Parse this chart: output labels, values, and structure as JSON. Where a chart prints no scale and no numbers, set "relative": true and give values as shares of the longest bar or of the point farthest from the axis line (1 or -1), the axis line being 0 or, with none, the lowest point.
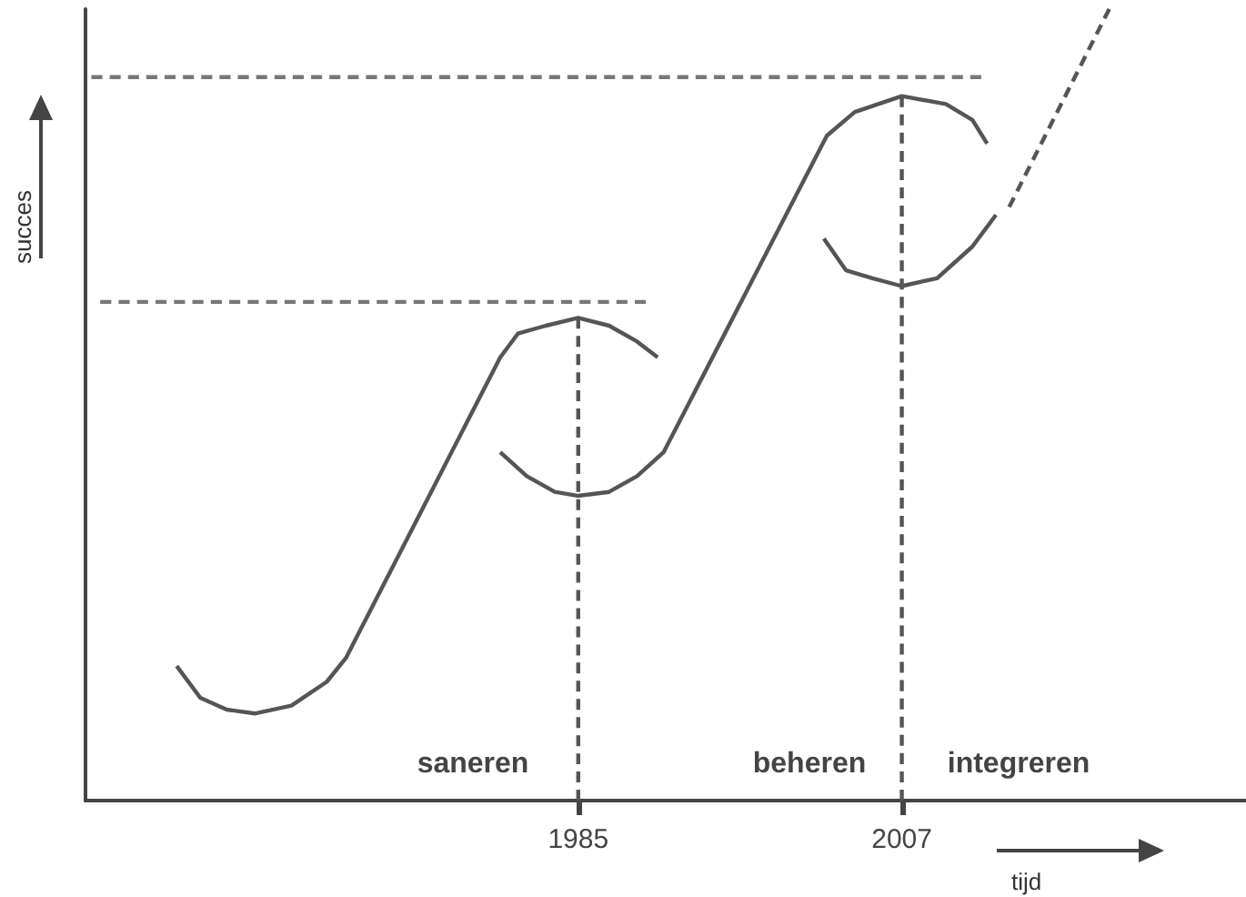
{
  "chart_data": {
    "type": "line",
    "relative": true,
    "xlabel": "tijd",
    "ylabel": "succes",
    "xlim": [
      1951.5,
      2030.4
    ],
    "xticks": [
      1985,
      2007
    ],
    "tick_labels": "x",
    "grid": false,
    "marker": "none",
    "series": [
      {
        "color": "#555555",
        "line_style": "solid",
        "x": [
          1957.7,
          1959.3,
          1961.1,
          1963.0,
          1965.5,
          1967.9,
          1969.2,
          1979.7,
          1980.9,
          1982.8,
          1985.0,
          1987.1,
          1989.0,
          1990.4
        ],
        "values": [
          0.17,
          0.13,
          0.115,
          0.11,
          0.12,
          0.15,
          0.18,
          0.56,
          0.59,
          0.6,
          0.61,
          0.6,
          0.58,
          0.56
        ]
      },
      {
        "color": "#555555",
        "line_style": "solid",
        "x": [
          1979.7,
          1981.5,
          1983.4,
          1985.0,
          1987.1,
          1989.0,
          1990.8,
          2001.9,
          2003.8,
          2007.0,
          2010.0,
          2011.8,
          2012.8
        ],
        "values": [
          0.44,
          0.41,
          0.39,
          0.385,
          0.39,
          0.41,
          0.44,
          0.84,
          0.87,
          0.89,
          0.88,
          0.86,
          0.83
        ]
      },
      {
        "color": "#555555",
        "line_style": "solid",
        "x": [
          2001.7,
          2003.2,
          2005.0,
          2007.0,
          2009.4,
          2011.8,
          2013.4
        ],
        "values": [
          0.71,
          0.67,
          0.66,
          0.65,
          0.66,
          0.7,
          0.74
        ]
      },
      {
        "color": "#555555",
        "line_style": "dashed",
        "x": [
          2014.3,
          2021.1
        ],
        "values": [
          0.75,
          1.0
        ]
      },
      {
        "color": "#777777",
        "line_style": "dashed",
        "x": [
          1952.5,
          1989.6
        ],
        "values": [
          0.63,
          0.63
        ]
      },
      {
        "color": "#777777",
        "line_style": "dashed",
        "x": [
          1951.9,
          2012.4
        ],
        "values": [
          0.914,
          0.914
        ]
      },
      {
        "color": "#555555",
        "line_style": "dashed",
        "x": [
          1985,
          1985
        ],
        "values": [
          0.61,
          0
        ]
      },
      {
        "color": "#555555",
        "line_style": "dashed",
        "x": [
          2007,
          2007
        ],
        "values": [
          0.89,
          0
        ]
      }
    ],
    "annotations": [
      "saneren",
      "beheren",
      "integreren"
    ]
  }
}
